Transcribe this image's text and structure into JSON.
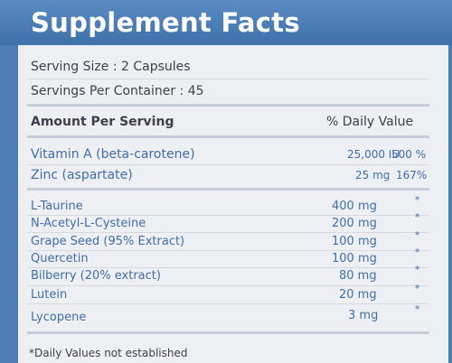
{
  "panel": {
    "title": "Supplement Facts",
    "serving_size": "Serving Size : 2 Capsules",
    "servings_per_container": "Servings Per Container : 45",
    "amount_header": "Amount Per Serving",
    "dv_header": "% Daily Value",
    "vitamins": [
      {
        "name": "Vitamin A (beta-carotene)",
        "amount": "25,000 IU",
        "dv": "500 %"
      },
      {
        "name": "Zinc (aspartate)",
        "amount": "25 mg",
        "dv": "167%"
      }
    ],
    "ingredients": [
      {
        "name": "L-Taurine",
        "amount": "400 mg",
        "dv": "*"
      },
      {
        "name": "N-Acetyl-L-Cysteine",
        "amount": "200 mg",
        "dv": "*"
      },
      {
        "name": "Grape Seed (95% Extract)",
        "amount": "100 mg",
        "dv": "*"
      },
      {
        "name": "Quercetin",
        "amount": "100 mg",
        "dv": "*"
      },
      {
        "name": "Bilberry (20% extract)",
        "amount": "80 mg",
        "dv": "*"
      },
      {
        "name": "Lutein",
        "amount": "20 mg",
        "dv": "*"
      },
      {
        "name": "Lycopene",
        "amount": "3 mg",
        "dv": "*"
      }
    ],
    "footnote": "*Daily Values not established"
  },
  "colors": {
    "header_blue": "#4a7db5",
    "label_background": "#eeeff3",
    "text_dark": "#3d3f4b",
    "text_blue": "#3f6ea8"
  }
}
